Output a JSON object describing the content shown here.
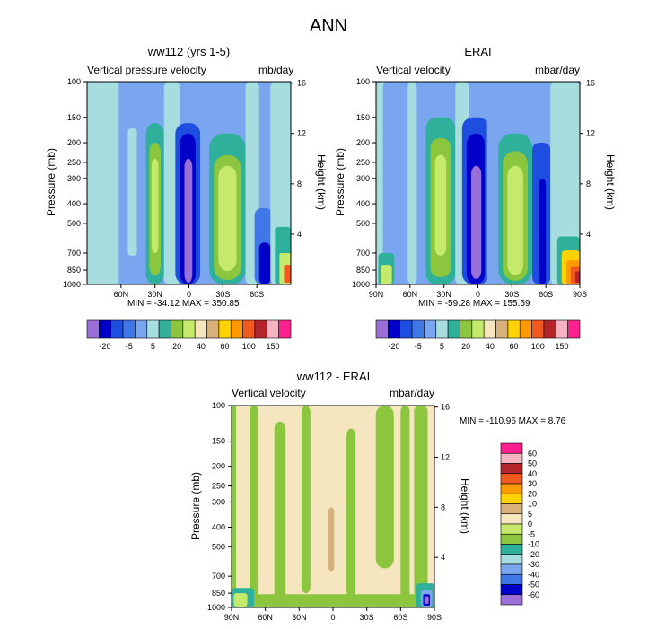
{
  "figure": {
    "title": "ANN",
    "colors": {
      "levels": [
        "#9b6fd8",
        "#0000c8",
        "#1e4ee0",
        "#3f78e6",
        "#7aa6f0",
        "#a8dde0",
        "#2fb09a",
        "#8bc63e",
        "#c5ea6b",
        "#f5e6c0",
        "#d8b07a",
        "#ffd200",
        "#ff9a00",
        "#f05a1e",
        "#b4242b",
        "#f7b3c2",
        "#ff1f8f"
      ],
      "diff_levels": [
        "#9b6fd8",
        "#0000c8",
        "#3f78e6",
        "#7aa6f0",
        "#a8dde0",
        "#2fb09a",
        "#8bc63e",
        "#c5ea6b",
        "#f5e6c0",
        "#d8b07a",
        "#ffd200",
        "#ff9a00",
        "#f05a1e",
        "#b4242b",
        "#f7b3c2",
        "#ff1f8f"
      ]
    }
  },
  "chart_data": [
    {
      "type": "heatmap",
      "title": "ww112 (yrs 1-5)",
      "left_label": "Vertical pressure velocity",
      "right_label": "mb/day",
      "ylabel": "Pressure (mb)",
      "y2label": "Height (km)",
      "x_ticks": [
        "60N",
        "30N",
        "0",
        "30S",
        "60S"
      ],
      "x_tick_values": [
        60,
        30,
        0,
        -30,
        -60
      ],
      "xlim": [
        90,
        -90
      ],
      "y_ticks": [
        100,
        150,
        200,
        250,
        300,
        400,
        500,
        700,
        850,
        1000
      ],
      "y_range": [
        100,
        1000
      ],
      "y2_ticks": [
        16,
        12,
        8,
        4
      ],
      "stats": "MIN = -34.12  MAX = 350.85",
      "colorbar_labels": [
        "-20",
        "-5",
        "5",
        "20",
        "40",
        "60",
        "100",
        "150"
      ],
      "colorbar_ticks": [
        -20,
        -10,
        -5,
        0,
        5,
        10,
        20,
        30,
        40,
        50,
        60,
        80,
        100,
        120,
        150,
        200
      ]
    },
    {
      "type": "heatmap",
      "title": "ERAI",
      "left_label": "Vertical velocity",
      "right_label": "mbar/day",
      "ylabel": "Pressure (mb)",
      "y2label": "Height (km)",
      "x_ticks": [
        "90N",
        "60N",
        "30N",
        "0",
        "30S",
        "60S",
        "90S"
      ],
      "x_tick_values": [
        90,
        60,
        30,
        0,
        -30,
        -60,
        -90
      ],
      "xlim": [
        90,
        -90
      ],
      "y_ticks": [
        100,
        150,
        200,
        250,
        300,
        400,
        500,
        700,
        850,
        1000
      ],
      "y_range": [
        100,
        1000
      ],
      "y2_ticks": [
        16,
        12,
        8,
        4
      ],
      "stats": "MIN = -59.28  MAX = 155.59",
      "colorbar_labels": [
        "-20",
        "-5",
        "5",
        "20",
        "40",
        "60",
        "100",
        "150"
      ],
      "colorbar_ticks": [
        -20,
        -10,
        -5,
        0,
        5,
        10,
        20,
        30,
        40,
        50,
        60,
        80,
        100,
        120,
        150,
        200
      ]
    },
    {
      "type": "heatmap",
      "title": "ww112 - ERAI",
      "left_label": "Vertical velocity",
      "right_label": "mbar/day",
      "ylabel": "Pressure (mb)",
      "y2label": "Height (km)",
      "x_ticks": [
        "90N",
        "60N",
        "30N",
        "0",
        "30S",
        "60S",
        "90S"
      ],
      "x_tick_values": [
        90,
        60,
        30,
        0,
        -30,
        -60,
        -90
      ],
      "xlim": [
        90,
        -90
      ],
      "y_ticks": [
        100,
        150,
        200,
        250,
        300,
        400,
        500,
        700,
        850,
        1000
      ],
      "y_range": [
        100,
        1000
      ],
      "y2_ticks": [
        16,
        12,
        8,
        4
      ],
      "stats": "MIN = -110.96  MAX =   8.76",
      "colorbar_labels": [
        "60",
        "50",
        "40",
        "30",
        "20",
        "10",
        "5",
        "0",
        "-5",
        "-10",
        "-20",
        "-30",
        "-40",
        "-50",
        "-60"
      ],
      "colorbar_orientation": "vertical"
    }
  ]
}
